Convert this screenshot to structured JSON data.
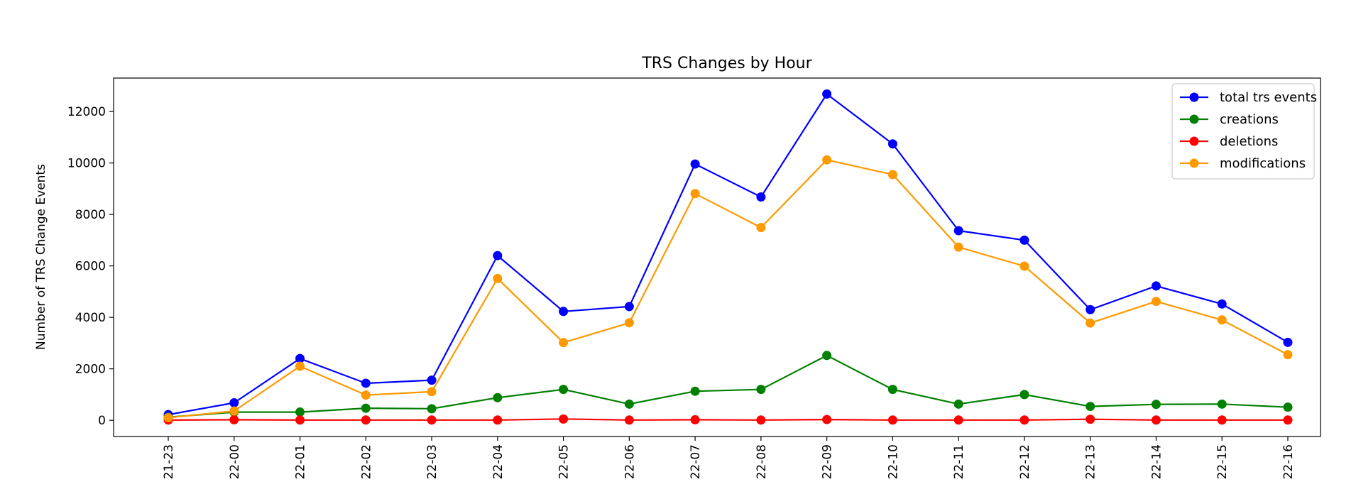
{
  "chart_data": {
    "type": "line",
    "title": "TRS Changes by Hour",
    "xlabel": "",
    "ylabel": "Number of TRS Change Events",
    "categories": [
      "21-23",
      "22-00",
      "22-01",
      "22-02",
      "22-03",
      "22-04",
      "22-05",
      "22-06",
      "22-07",
      "22-08",
      "22-09",
      "22-10",
      "22-11",
      "22-12",
      "22-13",
      "22-14",
      "22-15",
      "22-16"
    ],
    "yticks": [
      0,
      2000,
      4000,
      6000,
      8000,
      10000,
      12000
    ],
    "ylim": [
      -630,
      13300
    ],
    "grid": false,
    "legend_position": "top-right",
    "series": [
      {
        "name": "total trs events",
        "color": "#0000ff",
        "values": [
          220,
          680,
          2400,
          1440,
          1560,
          6400,
          4230,
          4420,
          9960,
          8680,
          12680,
          10740,
          7370,
          7000,
          4300,
          5220,
          4520,
          3030
        ]
      },
      {
        "name": "creations",
        "color": "#008000",
        "values": [
          120,
          320,
          320,
          470,
          450,
          880,
          1200,
          630,
          1130,
          1200,
          2520,
          1200,
          630,
          1000,
          540,
          620,
          630,
          510
        ]
      },
      {
        "name": "deletions",
        "color": "#ff0000",
        "values": [
          10,
          20,
          10,
          10,
          10,
          10,
          50,
          10,
          20,
          10,
          30,
          10,
          10,
          10,
          40,
          10,
          10,
          10
        ]
      },
      {
        "name": "modifications",
        "color": "#ff9900",
        "values": [
          100,
          360,
          2100,
          980,
          1110,
          5510,
          3020,
          3790,
          8810,
          7490,
          10120,
          9550,
          6730,
          5990,
          3780,
          4620,
          3900,
          2550
        ]
      }
    ]
  }
}
